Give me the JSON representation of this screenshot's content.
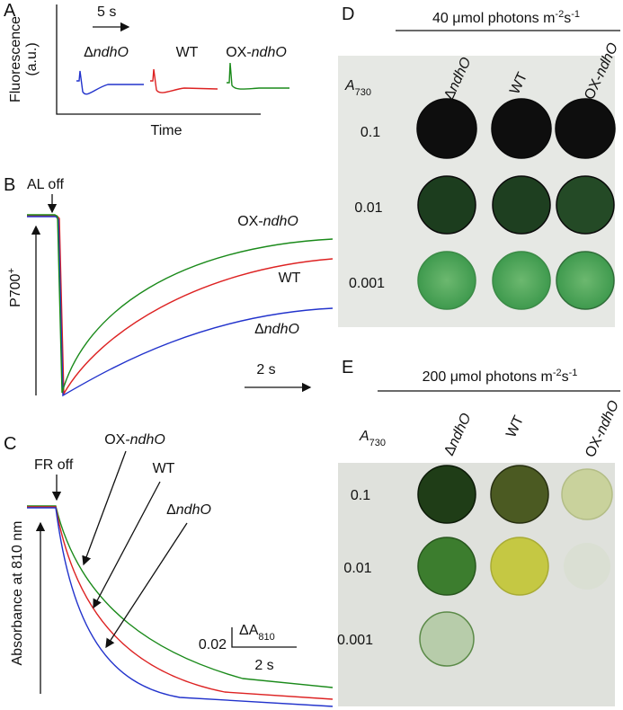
{
  "panel_a": {
    "label": "A",
    "time_scale": "5 s",
    "y_label": [
      "Fluorescence",
      "(a.u.)"
    ],
    "x_label": "Time",
    "traces": [
      {
        "prefix": "Δ",
        "italic": "ndhO"
      },
      {
        "prefix": "WT"
      },
      {
        "prefix": "OX-",
        "italic": "ndhO"
      }
    ]
  },
  "panel_b": {
    "label": "B",
    "trigger": "AL off",
    "y_label": {
      "text": "P700",
      "sup": "+"
    },
    "time_scale": "2 s",
    "traces": [
      {
        "prefix": "OX-",
        "italic": "ndhO"
      },
      {
        "prefix": "WT"
      },
      {
        "prefix": "Δ",
        "italic": "ndhO"
      }
    ]
  },
  "panel_c": {
    "label": "C",
    "trigger": "FR off",
    "y_label": "Absorbance at 810 nm",
    "traces": [
      {
        "prefix": "OX-",
        "italic": "ndhO"
      },
      {
        "prefix": "WT"
      },
      {
        "prefix": "Δ",
        "italic": "ndhO"
      }
    ],
    "scale": {
      "value": 0.02,
      "unit": {
        "text": "ΔA",
        "sub": "810"
      },
      "time": "2 s"
    }
  },
  "panel_d": {
    "label": "D",
    "title": [
      "40 μmol photons m",
      "-2",
      "s",
      "-1"
    ],
    "row_header": {
      "italic": "A",
      "sub": "730"
    },
    "columns": [
      {
        "prefix": "Δ",
        "italic": "ndhO"
      },
      {
        "prefix": "WT"
      },
      {
        "prefix": "OX-",
        "italic": "ndhO"
      }
    ],
    "rows": [
      0.1,
      0.01,
      0.001
    ]
  },
  "panel_e": {
    "label": "E",
    "title": [
      "200 μmol photons m",
      "-2",
      "s",
      "-1"
    ],
    "row_header": {
      "italic": "A",
      "sub": "730"
    },
    "columns": [
      {
        "prefix": "Δ",
        "italic": "ndhO"
      },
      {
        "prefix": "WT"
      },
      {
        "prefix": "OX-",
        "italic": "ndhO"
      }
    ],
    "rows": [
      0.1,
      0.01,
      0.001
    ]
  }
}
